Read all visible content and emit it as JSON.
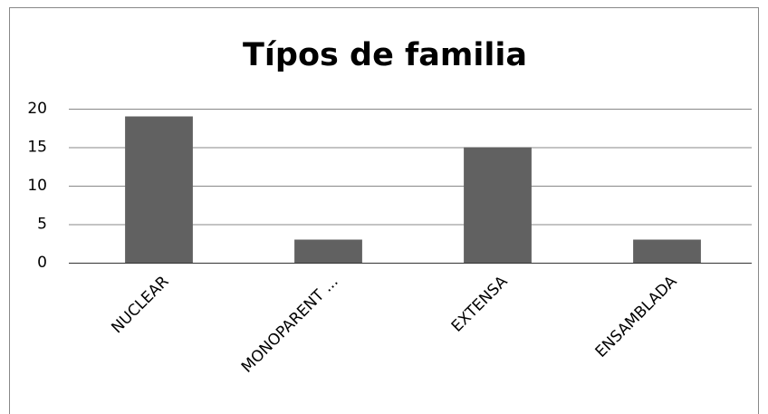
{
  "chart_data": {
    "type": "bar",
    "title": "Típos de familia",
    "categories": [
      "NUCLEAR",
      "MONOPARENT ...",
      "EXTENSA",
      "ENSAMBLADA"
    ],
    "values": [
      19,
      3,
      15,
      3
    ],
    "color": "#616161",
    "ylim": [
      0,
      20
    ],
    "yticks": [
      0,
      5,
      10,
      15,
      20
    ],
    "grid": true
  }
}
